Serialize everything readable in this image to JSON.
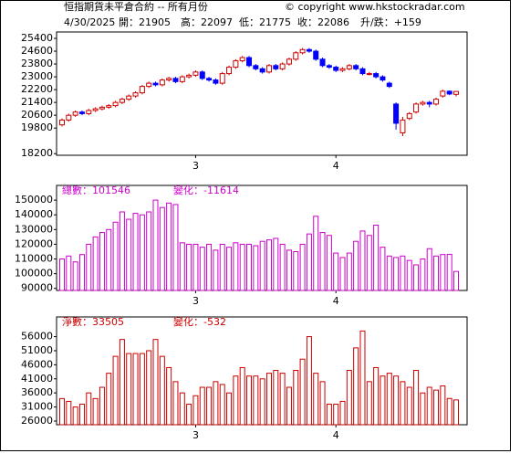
{
  "header": {
    "title": "恒指期貨未平倉合約 -- 所有月份",
    "copyright": "© copyright www.hkstockradar.com",
    "date": "4/30/2025",
    "open": "開：21905",
    "high": "高：22097",
    "low": "低：21775",
    "close": "收：22086",
    "change": "升/跌：+159"
  },
  "chart_data": [
    {
      "type": "candlestick",
      "categories": [
        null,
        null,
        null,
        null,
        null,
        null,
        null,
        null,
        null,
        null,
        null,
        null,
        null,
        null,
        null,
        null,
        null,
        null,
        null,
        null,
        "3",
        null,
        null,
        null,
        null,
        null,
        null,
        null,
        null,
        null,
        null,
        null,
        null,
        null,
        null,
        null,
        null,
        null,
        null,
        null,
        null,
        "4",
        null,
        null,
        null,
        null,
        null,
        null,
        null,
        null,
        null,
        null,
        null,
        null,
        null,
        null,
        null,
        null,
        null,
        null
      ],
      "open": [
        20000,
        20300,
        20600,
        20800,
        20700,
        20900,
        21000,
        21100,
        21200,
        21400,
        21600,
        21800,
        22000,
        22400,
        22600,
        22500,
        22800,
        22900,
        22700,
        23000,
        23100,
        23300,
        22900,
        22800,
        22600,
        23200,
        23600,
        24000,
        24200,
        23700,
        23500,
        23300,
        23700,
        23500,
        23800,
        24100,
        24500,
        24700,
        24600,
        24100,
        23700,
        23600,
        23400,
        23500,
        23700,
        23500,
        23200,
        23200,
        23000,
        22600,
        21300,
        19500,
        20400,
        20800,
        21300,
        21400,
        21300,
        21800,
        22100,
        21905
      ],
      "high": [
        20400,
        20700,
        20900,
        20900,
        21000,
        21100,
        21200,
        21300,
        21500,
        21700,
        21900,
        22100,
        22500,
        22700,
        22700,
        22900,
        23000,
        23000,
        23100,
        23200,
        23400,
        23400,
        23000,
        22900,
        23300,
        23700,
        24100,
        24300,
        24300,
        23800,
        23600,
        23800,
        23800,
        23900,
        24200,
        24600,
        24800,
        24800,
        24700,
        24200,
        23800,
        23700,
        23600,
        23800,
        23800,
        23600,
        23300,
        23300,
        23100,
        22700,
        21400,
        20500,
        20800,
        21400,
        21500,
        21500,
        21700,
        22200,
        22150,
        22097
      ],
      "low": [
        19900,
        20200,
        20500,
        20600,
        20600,
        20800,
        20900,
        21000,
        21100,
        21300,
        21500,
        21700,
        21900,
        22300,
        22400,
        22400,
        22700,
        22600,
        22600,
        22900,
        23000,
        22800,
        22700,
        22500,
        22500,
        23100,
        23500,
        23900,
        23600,
        23400,
        23200,
        23200,
        23400,
        23400,
        23700,
        24000,
        24400,
        24500,
        24000,
        23600,
        23500,
        23300,
        23300,
        23400,
        23400,
        23100,
        23100,
        22900,
        22700,
        22300,
        19700,
        19300,
        20300,
        20700,
        21200,
        21100,
        21200,
        21700,
        21850,
        21775
      ],
      "close": [
        20300,
        20600,
        20800,
        20700,
        20900,
        21000,
        21100,
        21200,
        21400,
        21600,
        21800,
        22000,
        22400,
        22600,
        22500,
        22800,
        22900,
        22700,
        23000,
        23100,
        23300,
        22900,
        22800,
        22600,
        23200,
        23600,
        24000,
        24200,
        23700,
        23500,
        23300,
        23700,
        23500,
        23800,
        24100,
        24500,
        24700,
        24600,
        24100,
        23700,
        23600,
        23400,
        23500,
        23700,
        23500,
        23200,
        23200,
        23000,
        22800,
        22400,
        20100,
        20300,
        20700,
        21300,
        21400,
        21300,
        21600,
        22100,
        21927,
        22086
      ],
      "up_color": "#cc0000",
      "down_color": "#0000ff",
      "ylim": [
        18100,
        25800
      ],
      "yticks": [
        25400,
        24600,
        23800,
        23000,
        22200,
        21400,
        20600,
        19800,
        18200
      ]
    },
    {
      "type": "bar",
      "label": "總數：101546",
      "change": "變化：-11614",
      "color": "#cc00cc",
      "categories": [
        null,
        null,
        null,
        null,
        null,
        null,
        null,
        null,
        null,
        null,
        null,
        null,
        null,
        null,
        null,
        null,
        null,
        null,
        null,
        null,
        "3",
        null,
        null,
        null,
        null,
        null,
        null,
        null,
        null,
        null,
        null,
        null,
        null,
        null,
        null,
        null,
        null,
        null,
        null,
        null,
        null,
        "4",
        null,
        null,
        null,
        null,
        null,
        null,
        null,
        null,
        null,
        null,
        null,
        null,
        null,
        null,
        null,
        null,
        null,
        null
      ],
      "values": [
        110000,
        112000,
        108000,
        113000,
        120000,
        125000,
        128000,
        130000,
        135000,
        142000,
        137000,
        141000,
        140000,
        142000,
        150000,
        145000,
        148000,
        147000,
        121000,
        120000,
        120000,
        118000,
        120000,
        116000,
        120000,
        118000,
        121000,
        120000,
        120000,
        119000,
        122000,
        123000,
        124000,
        120000,
        116000,
        115000,
        120000,
        127000,
        139000,
        128000,
        126000,
        114000,
        111000,
        114000,
        122000,
        129000,
        126000,
        133000,
        118000,
        112000,
        111000,
        112000,
        109000,
        106000,
        110000,
        117000,
        112000,
        113000,
        113160,
        101546
      ],
      "ylim": [
        88600,
        160000
      ],
      "yticks": [
        150000,
        140000,
        130000,
        120000,
        110000,
        100000,
        90000
      ]
    },
    {
      "type": "bar",
      "label": "淨數：33505",
      "change": "變化：-532",
      "color": "#cc0000",
      "categories": [
        null,
        null,
        null,
        null,
        null,
        null,
        null,
        null,
        null,
        null,
        null,
        null,
        null,
        null,
        null,
        null,
        null,
        null,
        null,
        null,
        "3",
        null,
        null,
        null,
        null,
        null,
        null,
        null,
        null,
        null,
        null,
        null,
        null,
        null,
        null,
        null,
        null,
        null,
        null,
        null,
        null,
        "4",
        null,
        null,
        null,
        null,
        null,
        null,
        null,
        null,
        null,
        null,
        null,
        null,
        null,
        null,
        null,
        null,
        null,
        null
      ],
      "values": [
        34000,
        33000,
        31000,
        32000,
        36000,
        34000,
        38000,
        43000,
        49000,
        55000,
        50000,
        50000,
        50000,
        51000,
        55000,
        49000,
        45000,
        40000,
        36000,
        32000,
        35000,
        38000,
        38000,
        40000,
        39000,
        36000,
        42000,
        45000,
        42000,
        42000,
        41000,
        43000,
        44000,
        43000,
        38000,
        44000,
        48000,
        56000,
        43000,
        40000,
        32000,
        32000,
        33000,
        44000,
        52000,
        58000,
        40000,
        45000,
        42000,
        43000,
        42000,
        40000,
        38000,
        44000,
        36000,
        38000,
        37000,
        38500,
        34037,
        33505
      ],
      "ylim": [
        24700,
        63000
      ],
      "yticks": [
        56000,
        51000,
        46000,
        41000,
        36000,
        31000,
        26000
      ]
    }
  ]
}
